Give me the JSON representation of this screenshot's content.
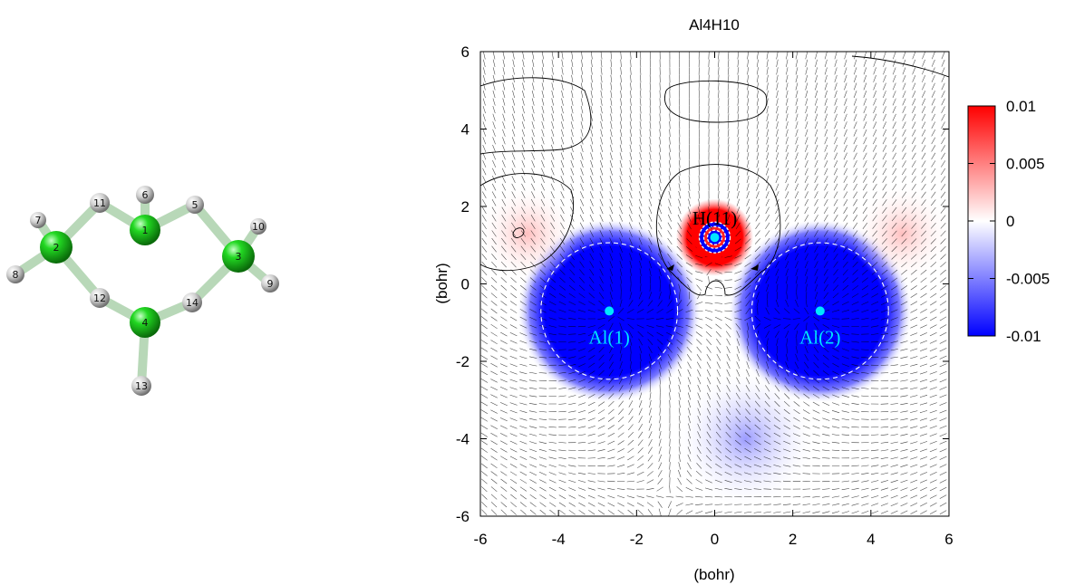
{
  "chart_data": {
    "type": "heatmap",
    "title": "Al4H10",
    "xlabel": "(bohr)",
    "ylabel": "(bohr)",
    "xlim": [
      -6,
      6
    ],
    "ylim": [
      -6,
      6
    ],
    "xticks": [
      -6,
      -4,
      -2,
      0,
      2,
      4,
      6
    ],
    "yticks": [
      -6,
      -4,
      -2,
      0,
      2,
      4,
      6
    ],
    "colorbar": {
      "range": [
        -0.01,
        0.01
      ],
      "ticks": [
        "0.01",
        "0.005",
        "0",
        "-0.005",
        "-0.01"
      ],
      "colors": [
        "#0000ff",
        "#ffffff",
        "#ff0000"
      ]
    },
    "atoms": [
      {
        "label": "Al(1)",
        "x": -2.7,
        "y": -0.7
      },
      {
        "label": "Al(2)",
        "x": 2.7,
        "y": -0.7
      },
      {
        "label": "H(11)",
        "x": 0.0,
        "y": 1.2
      }
    ],
    "density_features": [
      {
        "sign": "negative",
        "x": -2.7,
        "y": -0.7,
        "radius": 1.75
      },
      {
        "sign": "negative",
        "x": 2.7,
        "y": -0.7,
        "radius": 1.75
      },
      {
        "sign": "positive",
        "x": 0.0,
        "y": 1.2,
        "radius": 0.9
      },
      {
        "sign": "positive-weak",
        "x": -4.8,
        "y": 1.3,
        "radius": 1.3
      },
      {
        "sign": "positive-weak",
        "x": 4.8,
        "y": 1.3,
        "radius": 1.3
      },
      {
        "sign": "negative-weak",
        "x": 0.8,
        "y": -4.0,
        "radius": 1.8
      }
    ],
    "grid": false,
    "legend": "none"
  },
  "molecule": {
    "atom_labels": [
      "1",
      "2",
      "3",
      "4",
      "5",
      "6",
      "7",
      "8",
      "9",
      "10",
      "11",
      "12",
      "13",
      "14"
    ],
    "colors": {
      "aluminum": "#22cc22",
      "hydrogen": "#c8c8c8"
    }
  }
}
